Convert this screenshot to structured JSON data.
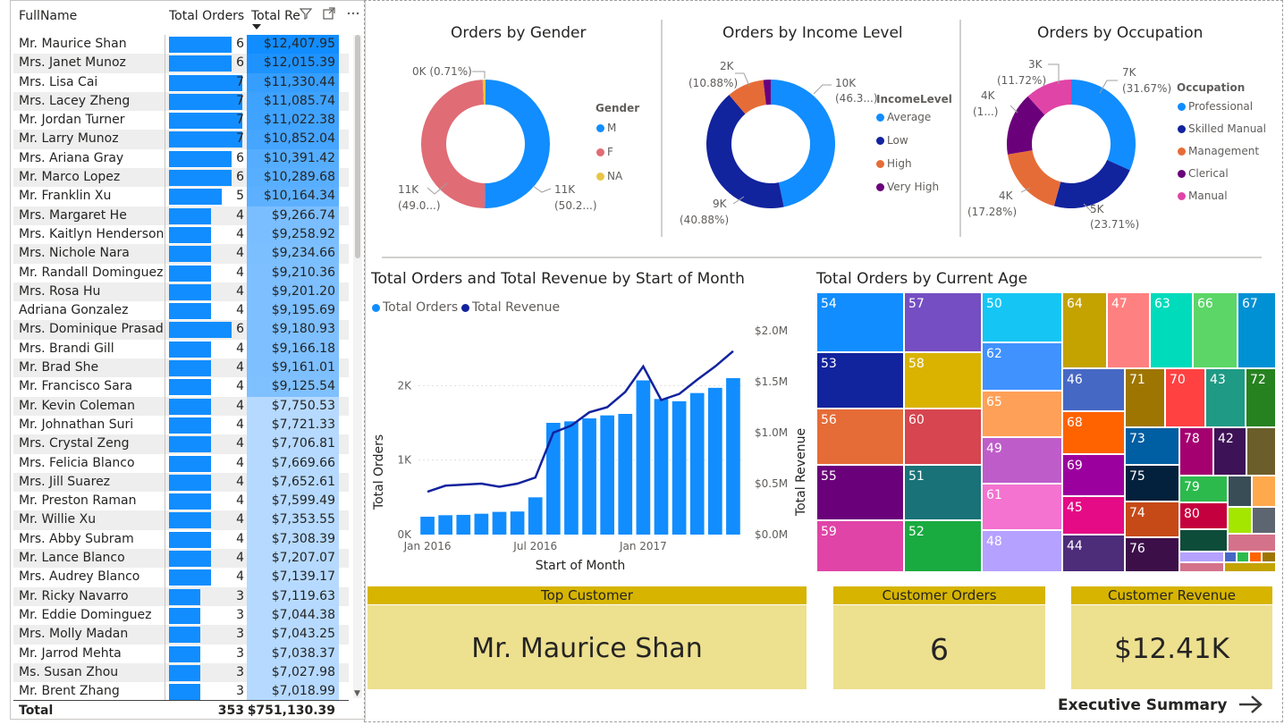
{
  "table": {
    "headers": {
      "name": "FullName",
      "orders": "Total Orders",
      "revenue": "Total Revenue"
    },
    "max_orders": 7,
    "rows": [
      {
        "name": "Mr. Maurice Shan",
        "orders": "6",
        "revenue": "$12,407.95",
        "rev_value": 12407.95
      },
      {
        "name": "Mrs. Janet Munoz",
        "orders": "6",
        "revenue": "$12,015.39",
        "rev_value": 12015.39
      },
      {
        "name": "Mrs. Lisa Cai",
        "orders": "7",
        "revenue": "$11,330.44",
        "rev_value": 11330.44
      },
      {
        "name": "Mrs. Lacey Zheng",
        "orders": "7",
        "revenue": "$11,085.74",
        "rev_value": 11085.74
      },
      {
        "name": "Mr. Jordan Turner",
        "orders": "7",
        "revenue": "$11,022.38",
        "rev_value": 11022.38
      },
      {
        "name": "Mr. Larry Munoz",
        "orders": "7",
        "revenue": "$10,852.04",
        "rev_value": 10852.04
      },
      {
        "name": "Mrs. Ariana Gray",
        "orders": "6",
        "revenue": "$10,391.42",
        "rev_value": 10391.42
      },
      {
        "name": "Mr. Marco Lopez",
        "orders": "6",
        "revenue": "$10,289.68",
        "rev_value": 10289.68
      },
      {
        "name": "Mr. Franklin Xu",
        "orders": "5",
        "revenue": "$10,164.34",
        "rev_value": 10164.34
      },
      {
        "name": "Mrs. Margaret He",
        "orders": "4",
        "revenue": "$9,266.74",
        "rev_value": 9266.74
      },
      {
        "name": "Mrs. Kaitlyn Henderson",
        "orders": "4",
        "revenue": "$9,258.92",
        "rev_value": 9258.92
      },
      {
        "name": "Mrs. Nichole Nara",
        "orders": "4",
        "revenue": "$9,234.66",
        "rev_value": 9234.66
      },
      {
        "name": "Mr. Randall Dominguez",
        "orders": "4",
        "revenue": "$9,210.36",
        "rev_value": 9210.36
      },
      {
        "name": "Mrs. Rosa Hu",
        "orders": "4",
        "revenue": "$9,201.20",
        "rev_value": 9201.2
      },
      {
        "name": "Adriana Gonzalez",
        "orders": "4",
        "revenue": "$9,195.69",
        "rev_value": 9195.69
      },
      {
        "name": "Mrs. Dominique Prasad",
        "orders": "6",
        "revenue": "$9,180.93",
        "rev_value": 9180.93
      },
      {
        "name": "Mrs. Brandi Gill",
        "orders": "4",
        "revenue": "$9,166.18",
        "rev_value": 9166.18
      },
      {
        "name": "Mr. Brad She",
        "orders": "4",
        "revenue": "$9,161.01",
        "rev_value": 9161.01
      },
      {
        "name": "Mr. Francisco Sara",
        "orders": "4",
        "revenue": "$9,125.54",
        "rev_value": 9125.54
      },
      {
        "name": "Mr. Kevin Coleman",
        "orders": "4",
        "revenue": "$7,750.53",
        "rev_value": 7750.53
      },
      {
        "name": "Mr. Johnathan Suri",
        "orders": "4",
        "revenue": "$7,721.33",
        "rev_value": 7721.33
      },
      {
        "name": "Mrs. Crystal Zeng",
        "orders": "4",
        "revenue": "$7,706.81",
        "rev_value": 7706.81
      },
      {
        "name": "Mrs. Felicia Blanco",
        "orders": "4",
        "revenue": "$7,669.66",
        "rev_value": 7669.66
      },
      {
        "name": "Mrs. Jill Suarez",
        "orders": "4",
        "revenue": "$7,652.61",
        "rev_value": 7652.61
      },
      {
        "name": "Mr. Preston Raman",
        "orders": "4",
        "revenue": "$7,599.49",
        "rev_value": 7599.49
      },
      {
        "name": "Mr. Willie Xu",
        "orders": "4",
        "revenue": "$7,353.55",
        "rev_value": 7353.55
      },
      {
        "name": "Mrs. Abby Subram",
        "orders": "4",
        "revenue": "$7,308.39",
        "rev_value": 7308.39
      },
      {
        "name": "Mr. Lance Blanco",
        "orders": "4",
        "revenue": "$7,207.07",
        "rev_value": 7207.07
      },
      {
        "name": "Mrs. Audrey Blanco",
        "orders": "4",
        "revenue": "$7,139.17",
        "rev_value": 7139.17
      },
      {
        "name": "Mr. Ricky Navarro",
        "orders": "3",
        "revenue": "$7,119.63",
        "rev_value": 7119.63
      },
      {
        "name": "Mr. Eddie Dominguez",
        "orders": "3",
        "revenue": "$7,044.38",
        "rev_value": 7044.38
      },
      {
        "name": "Mrs. Molly Madan",
        "orders": "3",
        "revenue": "$7,043.25",
        "rev_value": 7043.25
      },
      {
        "name": "Mr. Jarrod Mehta",
        "orders": "3",
        "revenue": "$7,038.37",
        "rev_value": 7038.37
      },
      {
        "name": "Ms. Susan Zhou",
        "orders": "3",
        "revenue": "$7,027.98",
        "rev_value": 7027.98
      },
      {
        "name": "Mr. Brent Zhang",
        "orders": "3",
        "revenue": "$7,018.99",
        "rev_value": 7018.99
      }
    ],
    "total": {
      "label": "Total",
      "orders": "353",
      "revenue": "$751,130.39"
    },
    "icons": [
      "filter-icon",
      "focus-mode-icon",
      "more-options-icon"
    ]
  },
  "gender_chart": {
    "title": "Orders by Gender",
    "legend_title": "Gender",
    "slices": [
      {
        "name": "M",
        "value": 11000,
        "pct": 50.2,
        "label_top": "11K",
        "label_bottom": "(50.2...)",
        "color": "#118dff"
      },
      {
        "name": "F",
        "value": 10760,
        "pct": 49.0,
        "label_top": "11K",
        "label_bottom": "(49.0...)",
        "color": "#e06c75"
      },
      {
        "name": "NA",
        "value": 156,
        "pct": 0.71,
        "label_top": "0K (0.71%)",
        "label_bottom": "",
        "color": "#e8c547"
      }
    ]
  },
  "income_chart": {
    "title": "Orders by Income Level",
    "legend_title": "IncomeLevel",
    "slices": [
      {
        "name": "Average",
        "value": 10000,
        "pct": 46.3,
        "label_top": "10K",
        "label_bottom": "(46.3...)",
        "color": "#118dff"
      },
      {
        "name": "Low",
        "value": 9000,
        "pct": 40.88,
        "label_top": "9K",
        "label_bottom": "(40.88%)",
        "color": "#12239e"
      },
      {
        "name": "High",
        "value": 2000,
        "pct": 10.88,
        "label_top": "2K",
        "label_bottom": "(10.88%)",
        "color": "#e66c37"
      },
      {
        "name": "Very High",
        "value": 400,
        "pct": 1.94,
        "label_top": "",
        "label_bottom": "",
        "color": "#6b007b"
      }
    ]
  },
  "occupation_chart": {
    "title": "Orders by Occupation",
    "legend_title": "Occupation",
    "slices": [
      {
        "name": "Professional",
        "value": 7000,
        "pct": 31.67,
        "label_top": "7K",
        "label_bottom": "(31.67%)",
        "color": "#118dff"
      },
      {
        "name": "Skilled Manual",
        "value": 5000,
        "pct": 23.71,
        "label_top": "5K",
        "label_bottom": "(23.71%)",
        "color": "#12239e"
      },
      {
        "name": "Management",
        "value": 4000,
        "pct": 17.28,
        "label_top": "4K",
        "label_bottom": "(17.28%)",
        "color": "#e66c37"
      },
      {
        "name": "Clerical",
        "value": 3500,
        "pct": 15.6,
        "label_top": "4K",
        "label_bottom": "(1...)",
        "color": "#6b007b"
      },
      {
        "name": "Manual",
        "value": 2600,
        "pct": 11.72,
        "label_top": "3K",
        "label_bottom": "(11.72%)",
        "color": "#e044a7"
      }
    ]
  },
  "combo_chart": {
    "title": "Total Orders and Total Revenue by Start of Month",
    "legend": [
      {
        "name": "Total Orders",
        "color": "#118dff"
      },
      {
        "name": "Total Revenue",
        "color": "#12239e"
      }
    ],
    "xlabel": "Start of Month",
    "ylabel_left": "Total Orders",
    "ylabel_right": "Total Revenue",
    "x_ticks": [
      "Jan 2016",
      "Jul 2016",
      "Jan 2017"
    ],
    "y_left_ticks": [
      "0K",
      "1K",
      "2K"
    ],
    "y_right_ticks": [
      "$0.0M",
      "$0.5M",
      "$1.0M",
      "$1.5M",
      "$2.0M"
    ]
  },
  "chart_data": {
    "type": "bar",
    "title": "Total Orders and Total Revenue by Start of Month",
    "xlabel": "Start of Month",
    "ylabel": "Total Orders",
    "ylabel_right": "Total Revenue",
    "categories": [
      "Jan 2016",
      "Feb 2016",
      "Mar 2016",
      "Apr 2016",
      "May 2016",
      "Jun 2016",
      "Jul 2016",
      "Aug 2016",
      "Sep 2016",
      "Oct 2016",
      "Nov 2016",
      "Dec 2016",
      "Jan 2017",
      "Feb 2017",
      "Mar 2017",
      "Apr 2017",
      "May 2017",
      "Jun 2017"
    ],
    "ylim": [
      0,
      2400
    ],
    "ylim_right": [
      0,
      2000000
    ],
    "series": [
      {
        "name": "Total Orders",
        "type": "bar",
        "axis": "left",
        "values": [
          240,
          260,
          265,
          280,
          305,
          310,
          500,
          1500,
          1520,
          1560,
          1600,
          1620,
          2070,
          1820,
          1790,
          1900,
          1970,
          2100
        ]
      },
      {
        "name": "Total Revenue",
        "type": "line",
        "axis": "right",
        "values": [
          420000,
          480000,
          490000,
          500000,
          470000,
          500000,
          560000,
          1000000,
          1070000,
          1200000,
          1250000,
          1400000,
          1650000,
          1320000,
          1380000,
          1520000,
          1650000,
          1800000
        ]
      }
    ]
  },
  "treemap": {
    "title": "Total Orders by Current Age",
    "cells": [
      {
        "label": "54",
        "color": "#118dff"
      },
      {
        "label": "53",
        "color": "#12239e"
      },
      {
        "label": "56",
        "color": "#e66c37"
      },
      {
        "label": "55",
        "color": "#6b007b"
      },
      {
        "label": "59",
        "color": "#e044a7"
      },
      {
        "label": "57",
        "color": "#744ec2"
      },
      {
        "label": "58",
        "color": "#d9b300"
      },
      {
        "label": "60",
        "color": "#d64550"
      },
      {
        "label": "51",
        "color": "#197278"
      },
      {
        "label": "52",
        "color": "#1aab40"
      },
      {
        "label": "50",
        "color": "#15c6f4"
      },
      {
        "label": "62",
        "color": "#4092ff"
      },
      {
        "label": "65",
        "color": "#ffa058"
      },
      {
        "label": "49",
        "color": "#be5dc9"
      },
      {
        "label": "61",
        "color": "#f472d0"
      },
      {
        "label": "48",
        "color": "#b5a1ff"
      },
      {
        "label": "64",
        "color": "#c4a200"
      },
      {
        "label": "47",
        "color": "#ff8080"
      },
      {
        "label": "63",
        "color": "#00dbbc"
      },
      {
        "label": "66",
        "color": "#5bd667"
      },
      {
        "label": "67",
        "color": "#0091d5"
      },
      {
        "label": "46",
        "color": "#4668c5"
      },
      {
        "label": "71",
        "color": "#9e7500"
      },
      {
        "label": "70",
        "color": "#ff4141"
      },
      {
        "label": "43",
        "color": "#1f9a85"
      },
      {
        "label": "72",
        "color": "#26821f"
      },
      {
        "label": "68",
        "color": "#ff6300"
      },
      {
        "label": "69",
        "color": "#9b009e"
      },
      {
        "label": "45",
        "color": "#e50a86"
      },
      {
        "label": "44",
        "color": "#4d2c7a"
      },
      {
        "label": "73",
        "color": "#005ea2"
      },
      {
        "label": "78",
        "color": "#a4006f"
      },
      {
        "label": "42",
        "color": "#3e1256"
      },
      {
        "label": "75",
        "color": "#03213d"
      },
      {
        "label": "79",
        "color": "#2dba4d"
      },
      {
        "label": "74",
        "color": "#c54a17"
      },
      {
        "label": "80",
        "color": "#c5003e"
      },
      {
        "label": "76",
        "color": "#3c0f49"
      },
      {
        "label": "",
        "color": "#6b5e2b"
      },
      {
        "label": "",
        "color": "#394d57"
      },
      {
        "label": "",
        "color": "#ffa94d"
      },
      {
        "label": "",
        "color": "#a4e600"
      },
      {
        "label": "",
        "color": "#5d6670"
      },
      {
        "label": "",
        "color": "#0e4c3a"
      },
      {
        "label": "",
        "color": "#d5728b"
      }
    ]
  },
  "cards": {
    "top_customer": {
      "header": "Top Customer",
      "value": "Mr. Maurice Shan"
    },
    "customer_orders": {
      "header": "Customer Orders",
      "value": "6"
    },
    "customer_revenue": {
      "header": "Customer Revenue",
      "value": "$12.41K"
    }
  },
  "nav": {
    "label": "Executive Summary"
  }
}
